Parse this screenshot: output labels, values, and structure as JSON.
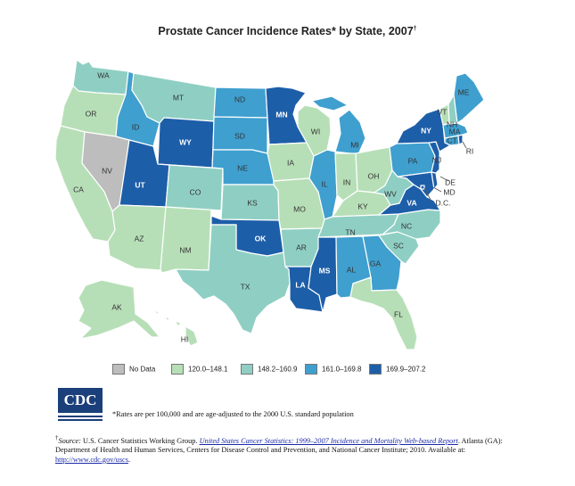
{
  "title": {
    "text": "Prostate Cancer Incidence Rates* by State, 2007",
    "mark": "†"
  },
  "colors": {
    "nodata": "#bdbdbd",
    "c1": "#b7dfb7",
    "c2": "#8fcfc3",
    "c3": "#3f9fcf",
    "c4": "#1d5ea8",
    "border": "#ffffff"
  },
  "legend": [
    {
      "label": "No Data",
      "color_key": "nodata"
    },
    {
      "label": "120.0–148.1",
      "color_key": "c1"
    },
    {
      "label": "148.2–160.9",
      "color_key": "c2"
    },
    {
      "label": "161.0–169.8",
      "color_key": "c3"
    },
    {
      "label": "169.9–207.2",
      "color_key": "c4"
    }
  ],
  "states": {
    "WA": "c2",
    "OR": "c1",
    "CA": "c1",
    "NV": "nodata",
    "ID": "c3",
    "MT": "c2",
    "WY": "c4",
    "UT": "c4",
    "AZ": "c1",
    "NM": "c1",
    "CO": "c2",
    "ND": "c3",
    "SD": "c3",
    "NE": "c3",
    "KS": "c2",
    "OK": "c4",
    "TX": "c2",
    "MN": "c4",
    "IA": "c1",
    "MO": "c1",
    "AR": "c2",
    "LA": "c4",
    "WI": "c1",
    "IL": "c3",
    "MS": "c4",
    "MI": "c3",
    "IN": "c1",
    "KY": "c1",
    "TN": "c2",
    "AL": "c3",
    "OH": "c1",
    "WV": "c2",
    "VA": "c4",
    "NC": "c2",
    "SC": "c2",
    "GA": "c3",
    "FL": "c1",
    "PA": "c3",
    "NY": "c4",
    "ME": "c3",
    "VT": "c1",
    "NH": "c2",
    "MA": "c3",
    "RI": "c4",
    "CT": "c3",
    "NJ": "c4",
    "DE": "c4",
    "MD": "c4",
    "DC": "c4",
    "AK": "c1",
    "HI": "c1"
  },
  "labels": {
    "WA": "WA",
    "OR": "OR",
    "CA": "CA",
    "NV": "NV",
    "ID": "ID",
    "MT": "MT",
    "WY": "WY",
    "UT": "UT",
    "AZ": "AZ",
    "NM": "NM",
    "CO": "CO",
    "ND": "ND",
    "SD": "SD",
    "NE": "NE",
    "KS": "KS",
    "OK": "OK",
    "TX": "TX",
    "MN": "MN",
    "IA": "IA",
    "MO": "MO",
    "AR": "AR",
    "LA": "LA",
    "WI": "WI",
    "IL": "IL",
    "MS": "MS",
    "MI": "MI",
    "IN": "IN",
    "KY": "KY",
    "TN": "TN",
    "AL": "AL",
    "OH": "OH",
    "WV": "WV",
    "VA": "VA",
    "NC": "NC",
    "SC": "SC",
    "GA": "GA",
    "FL": "FL",
    "PA": "PA",
    "NY": "NY",
    "ME": "ME",
    "VT": "VT",
    "NH": "NH",
    "MA": "MA",
    "RI": "RI",
    "CT": "CT",
    "NJ": "NJ",
    "DE": "DE",
    "MD": "MD",
    "DC": "D.C.",
    "AK": "AK",
    "HI": "HI"
  },
  "logo": {
    "text": "CDC"
  },
  "footnote": "*Rates are per 100,000 and are age-adjusted to the 2000 U.S. standard population",
  "source": {
    "mark": "†",
    "prefix": "Source:",
    "text1": " U.S. Cancer Statistics Working Group. ",
    "link_title": "United States Cancer Statistics: 1999–2007 Incidence and Mortality Web-based Report",
    "text2": ". Atlanta (GA): Department of Health and Human Services, Centers for Disease Control and Prevention, and National Cancer Institute; 2010. Available at: ",
    "url": "http://www.cdc.gov/uscs",
    "end": "."
  }
}
